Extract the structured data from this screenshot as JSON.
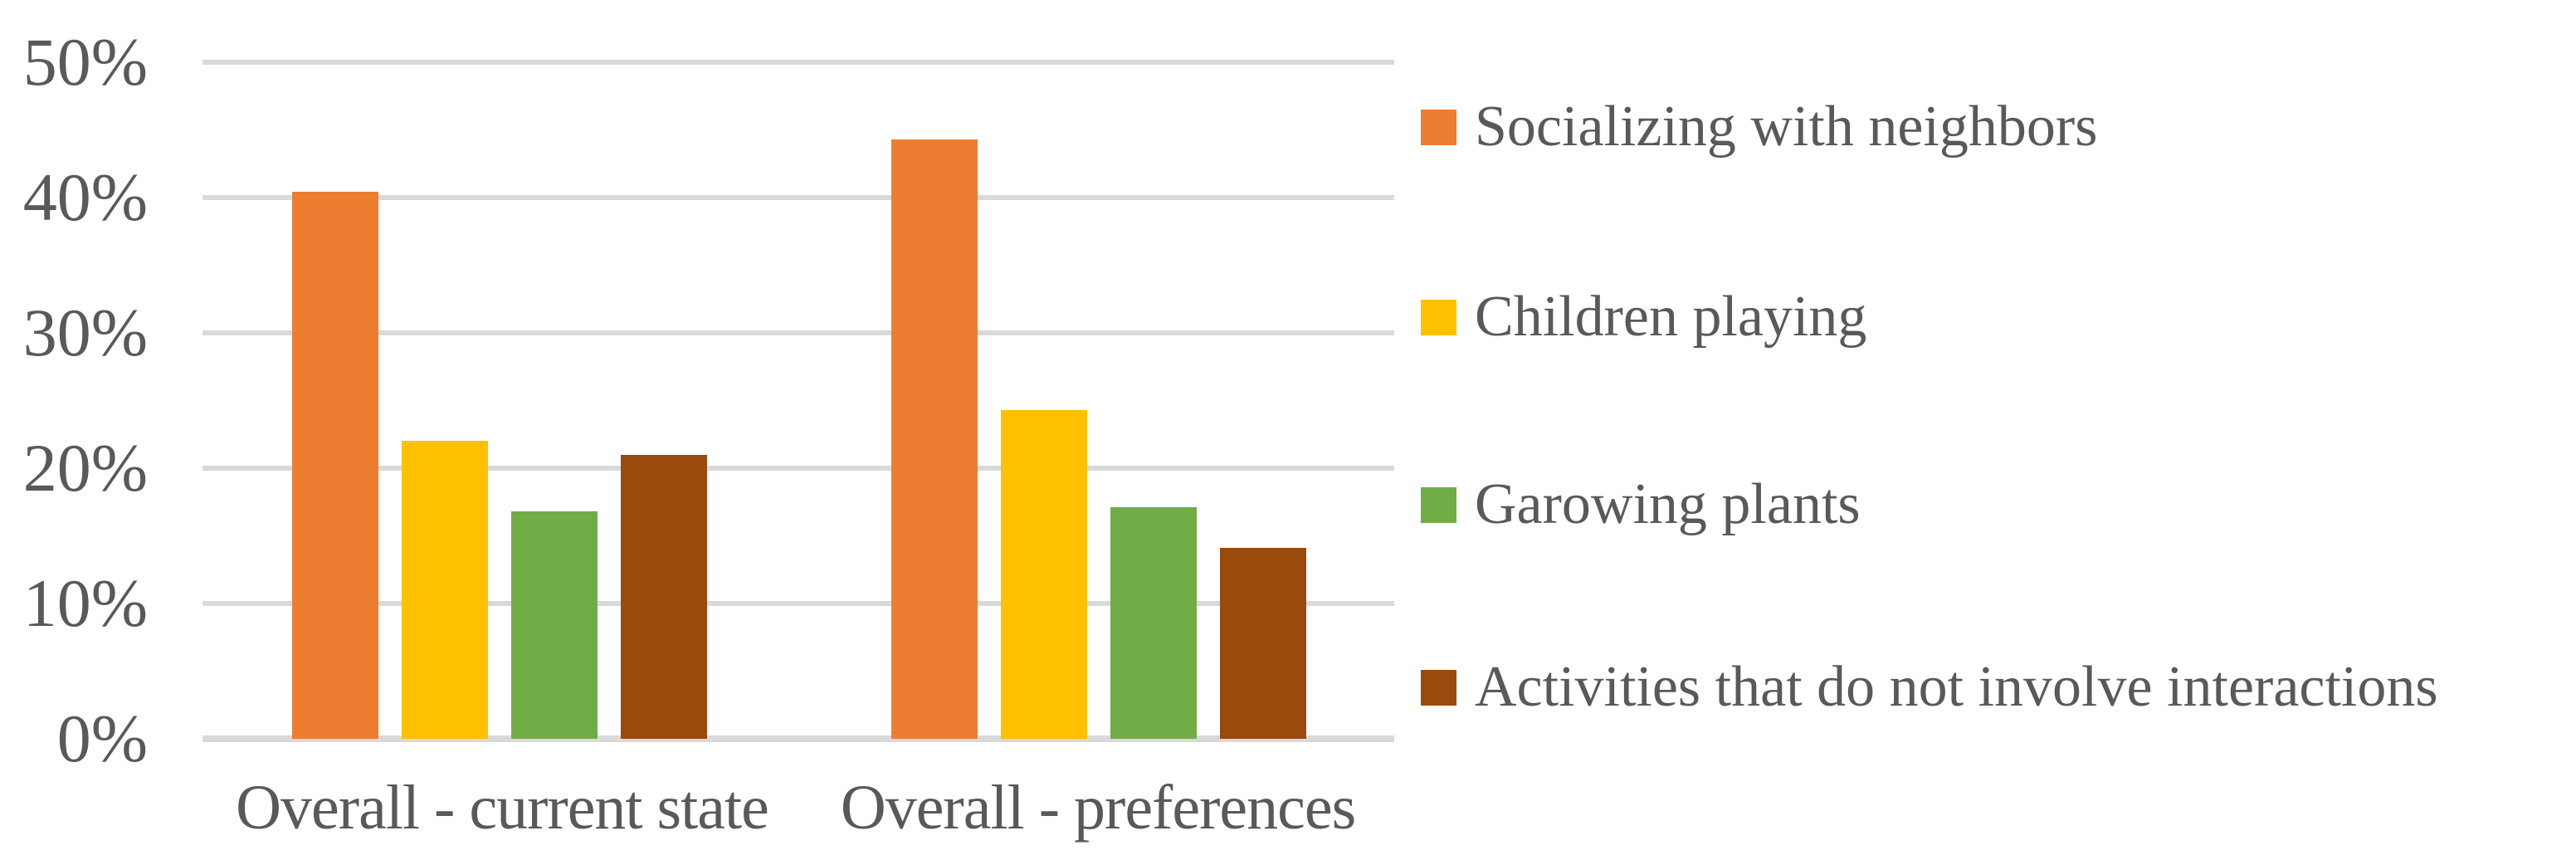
{
  "chart_data": {
    "type": "bar",
    "title": "",
    "xlabel": "",
    "ylabel": "",
    "categories": [
      "Overall - current state",
      "Overall - preferences"
    ],
    "series": [
      {
        "name": "Socializing with neighbors",
        "color": "#ED7D31",
        "values": [
          40.4,
          44.3
        ]
      },
      {
        "name": "Children playing",
        "color": "#FFC000",
        "values": [
          22.0,
          24.3
        ]
      },
      {
        "name": "Garowing plants",
        "color": "#70AD47",
        "values": [
          16.8,
          17.1
        ]
      },
      {
        "name": "Activities that do not involve interactions",
        "color": "#9A4A0D",
        "values": [
          21.0,
          14.1
        ]
      }
    ],
    "y_ticks": [
      "50%",
      "40%",
      "30%",
      "20%",
      "10%",
      "0%"
    ],
    "y_tick_values": [
      50,
      40,
      30,
      20,
      10,
      0
    ],
    "ylim": [
      0,
      50
    ],
    "grid": true,
    "legend_position": "right"
  },
  "colors": {
    "gridline": "#D9D9D9",
    "axis_text": "#595959",
    "background": "#FFFFFF"
  }
}
